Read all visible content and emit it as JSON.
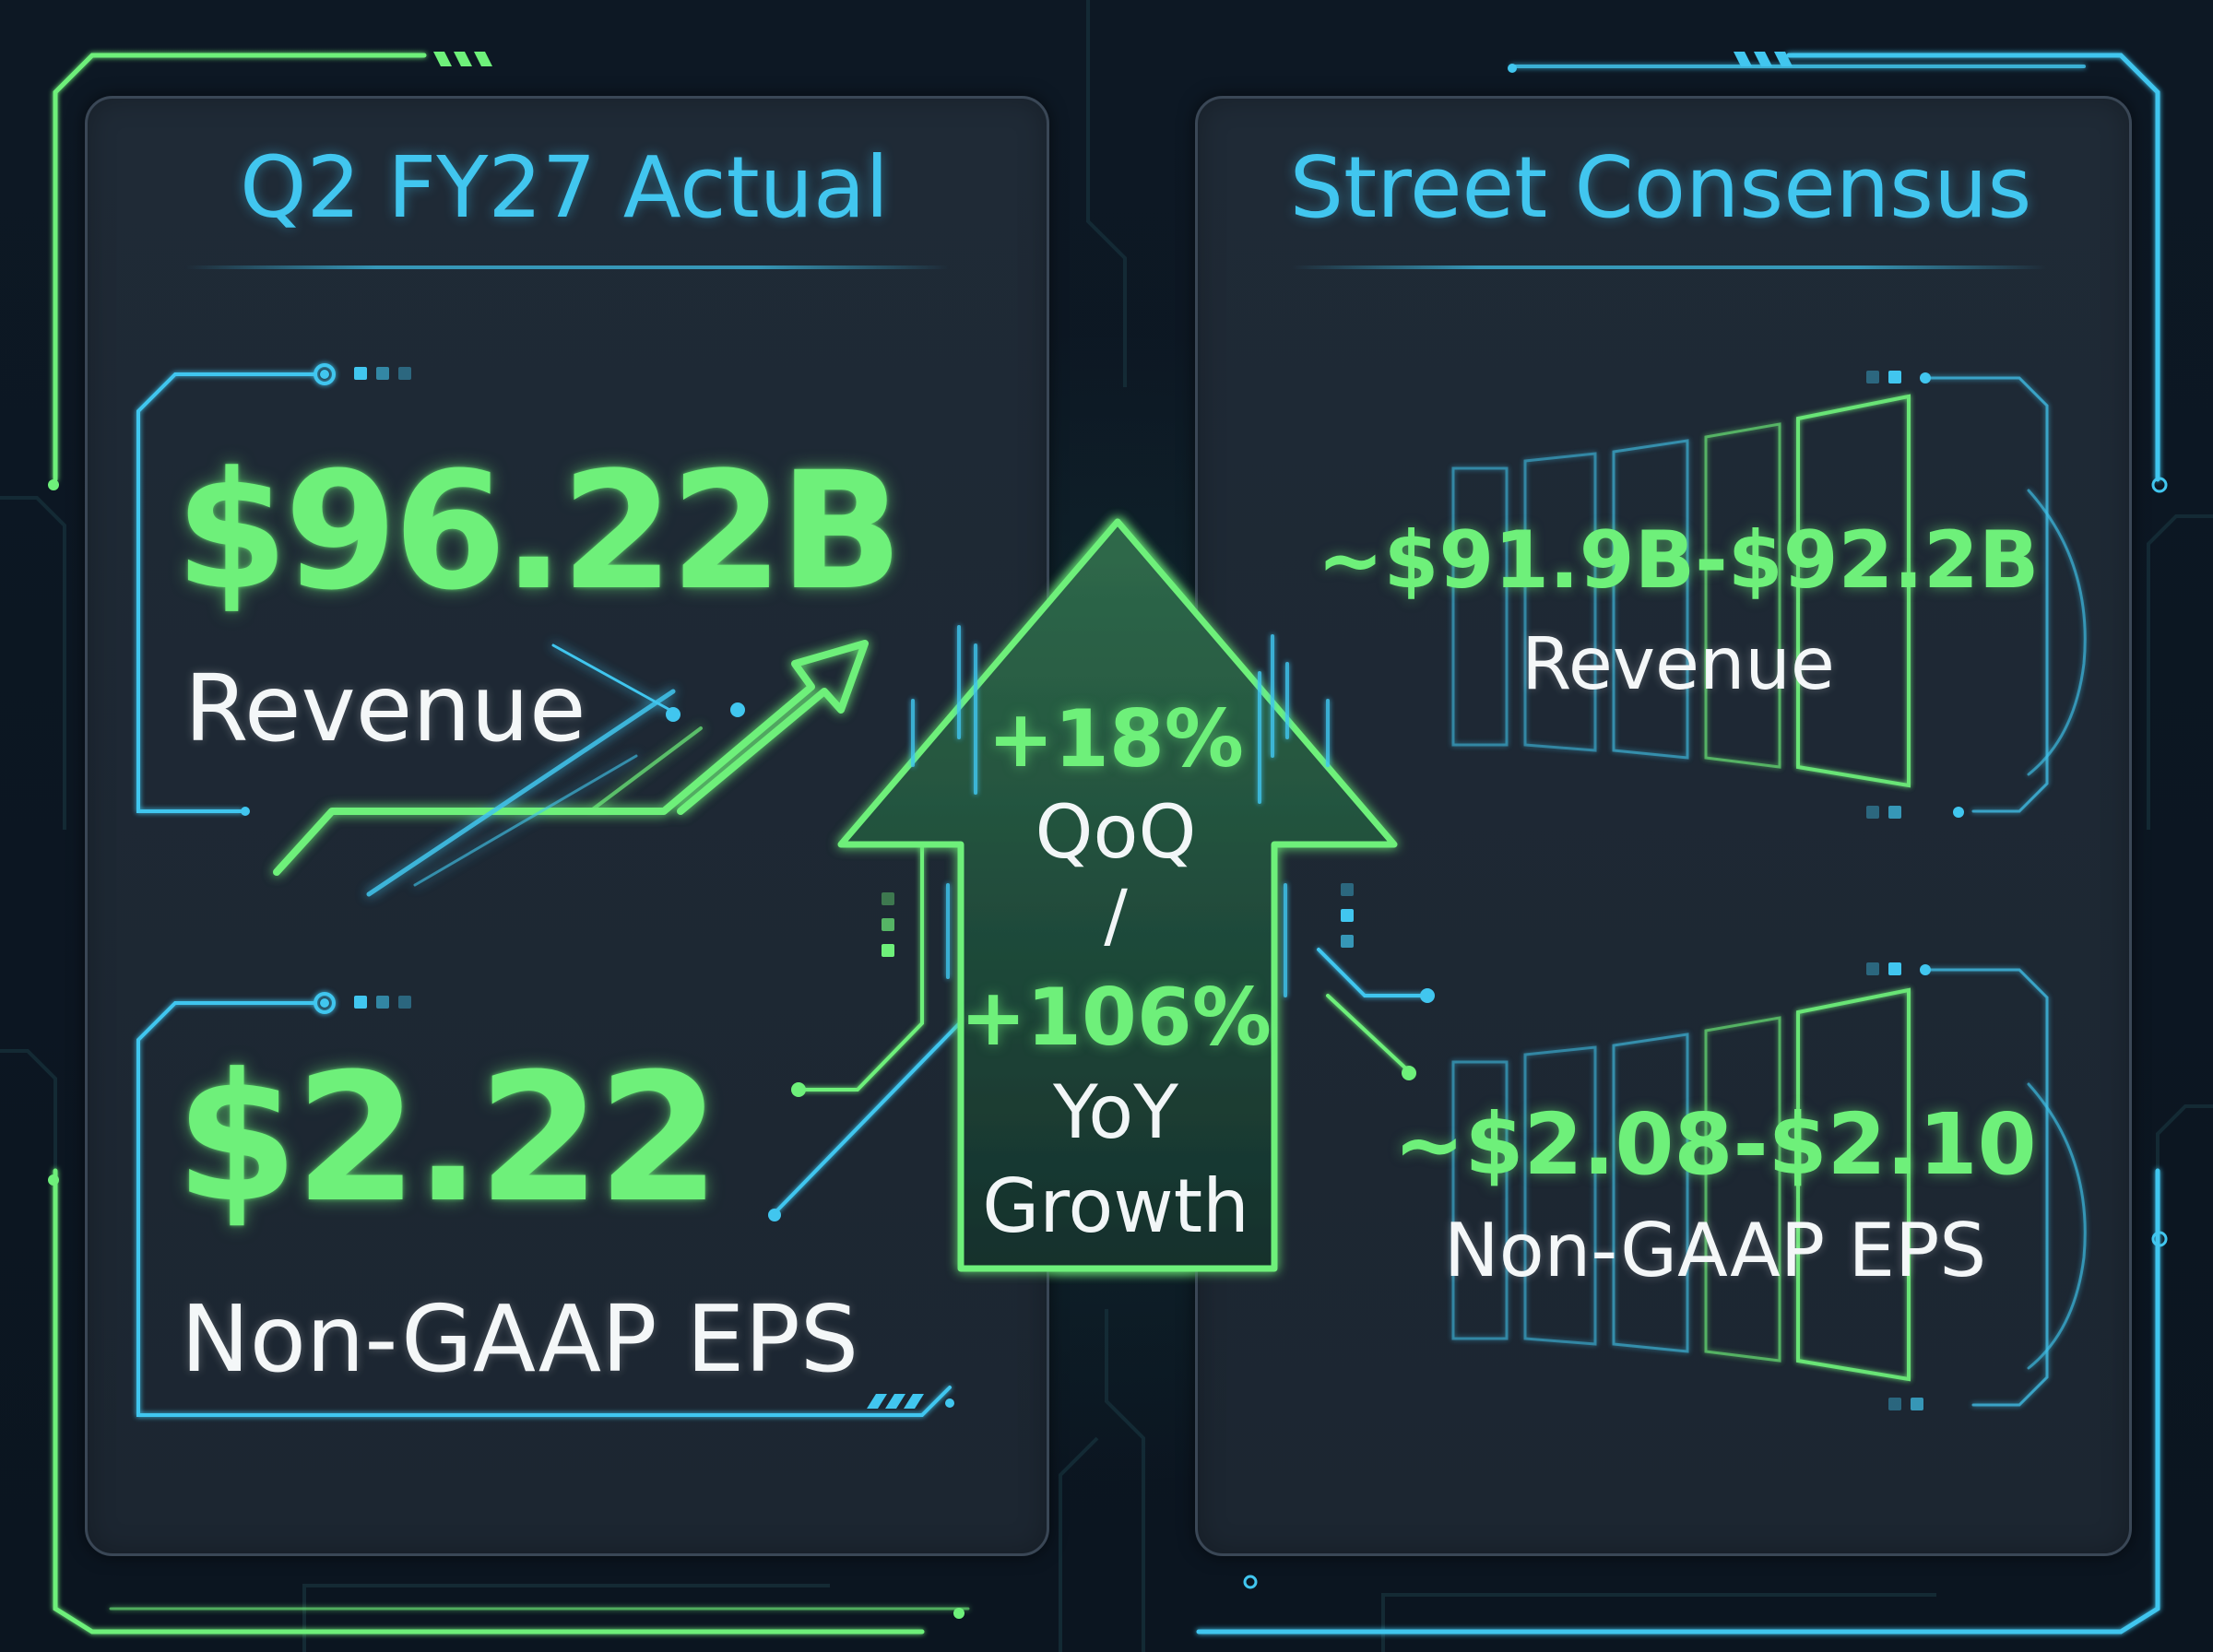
{
  "colors": {
    "background": "#0c1621",
    "panel": "#1f2a36",
    "accent_green": "#6ef07a",
    "accent_blue": "#41c6ef",
    "text_white": "#f4f7f8"
  },
  "actual": {
    "title": "Q2 FY27 Actual",
    "revenue_value": "$96.22B",
    "revenue_label": "Revenue",
    "eps_value": "$2.22",
    "eps_label": "Non-GAAP EPS"
  },
  "consensus": {
    "title": "Street Consensus",
    "revenue_value": "~$91.9B-$92.2B",
    "revenue_label": "Revenue",
    "eps_value": "~$2.08-$2.10",
    "eps_label": "Non-GAAP EPS"
  },
  "growth": {
    "qoq_value": "+18%",
    "qoq_label": "QoQ",
    "separator": "/",
    "yoy_value": "+106%",
    "yoy_label": "YoY",
    "word": "Growth"
  },
  "icons": {
    "trend_arrow": "trend-up-arrow-icon",
    "growth_arrow": "growth-up-arrow-icon",
    "bars": "comparison-bars-icon"
  }
}
